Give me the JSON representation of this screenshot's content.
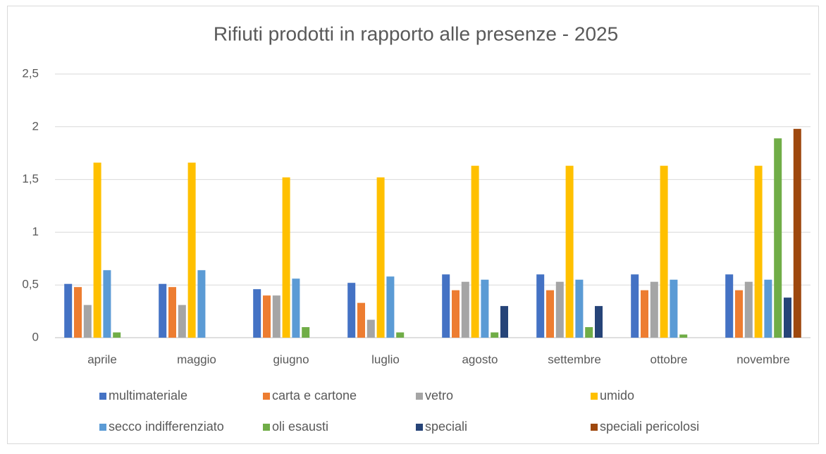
{
  "chart_data": {
    "type": "bar",
    "title": "Rifiuti prodotti in rapporto alle presenze - 2025",
    "categories": [
      "aprile",
      "maggio",
      "giugno",
      "luglio",
      "agosto",
      "settembre",
      "ottobre",
      "novembre"
    ],
    "series": [
      {
        "name": "multimateriale",
        "color": "#4472c4",
        "values": [
          0.51,
          0.51,
          0.46,
          0.52,
          0.6,
          0.6,
          0.6,
          0.6
        ]
      },
      {
        "name": "carta e cartone",
        "color": "#ed7d31",
        "values": [
          0.48,
          0.48,
          0.4,
          0.33,
          0.45,
          0.45,
          0.45,
          0.45
        ]
      },
      {
        "name": "vetro",
        "color": "#a5a5a5",
        "values": [
          0.31,
          0.31,
          0.4,
          0.17,
          0.53,
          0.53,
          0.53,
          0.53
        ]
      },
      {
        "name": "umido",
        "color": "#ffc000",
        "values": [
          1.66,
          1.66,
          1.52,
          1.52,
          1.63,
          1.63,
          1.63,
          1.63
        ]
      },
      {
        "name": "secco indifferenziato",
        "color": "#5b9bd5",
        "values": [
          0.64,
          0.64,
          0.56,
          0.58,
          0.55,
          0.55,
          0.55,
          0.55
        ]
      },
      {
        "name": "oli esausti",
        "color": "#70ad47",
        "values": [
          0.05,
          0,
          0.1,
          0.05,
          0.05,
          0.1,
          0.03,
          1.89
        ]
      },
      {
        "name": "speciali",
        "color": "#264478",
        "values": [
          0,
          0,
          0,
          0,
          0.3,
          0.3,
          0,
          0.38
        ]
      },
      {
        "name": "speciali pericolosi",
        "color": "#9e480e",
        "values": [
          0,
          0,
          0,
          0,
          0,
          0,
          0,
          1.98
        ]
      }
    ],
    "ylim": [
      0,
      2.5
    ],
    "yticks": [
      0,
      {
        "value": 0.5,
        "label": "0,5"
      },
      1,
      {
        "value": 1.5,
        "label": "1,5"
      },
      2,
      {
        "value": 2.5,
        "label": "2,5"
      }
    ],
    "grid": true,
    "legend": "bottom"
  }
}
